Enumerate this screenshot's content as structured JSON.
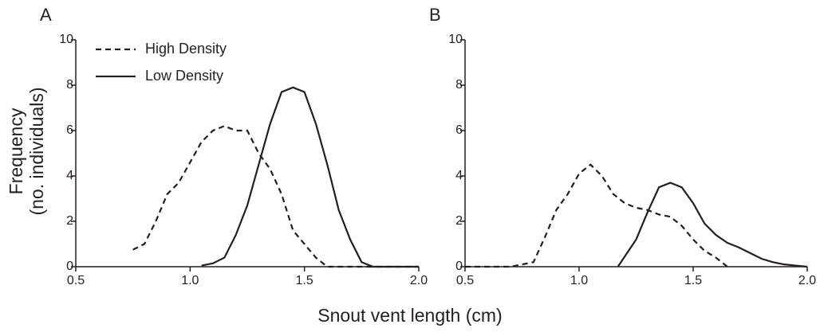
{
  "xlabel": "Snout vent length (cm)",
  "chart_data": [
    {
      "type": "line",
      "title": "A",
      "ylabel": [
        "Frequency",
        "(no. individuals)"
      ],
      "xlim": [
        0.5,
        2.0
      ],
      "xticks": [
        0.5,
        {
          "value": 1,
          "label": "1.0"
        },
        1.5,
        {
          "value": 2,
          "label": "2.0"
        }
      ],
      "ylim": [
        0,
        10
      ],
      "yticks": [
        0,
        2,
        4,
        6,
        8,
        10
      ],
      "legend": "upper left",
      "series": [
        {
          "name": "High Density",
          "color": "#231f20",
          "dash": "dashed",
          "x": [
            0.75,
            0.8,
            0.85,
            0.9,
            0.95,
            1.0,
            1.05,
            1.1,
            1.15,
            1.2,
            1.25,
            1.3,
            1.35,
            1.4,
            1.45,
            1.5,
            1.55,
            1.6,
            1.7,
            1.8,
            1.9,
            2.0
          ],
          "values": [
            0.75,
            1.0,
            2.0,
            3.2,
            3.7,
            4.6,
            5.5,
            6.0,
            6.2,
            6.0,
            6.0,
            5.0,
            4.3,
            3.2,
            1.6,
            1.0,
            0.4,
            0,
            0,
            0,
            0,
            0
          ]
        },
        {
          "name": "Low Density",
          "color": "#231f20",
          "dash": "solid",
          "x": [
            1.05,
            1.1,
            1.15,
            1.2,
            1.25,
            1.3,
            1.35,
            1.4,
            1.45,
            1.5,
            1.55,
            1.6,
            1.65,
            1.7,
            1.75,
            1.8,
            1.9,
            2.0
          ],
          "values": [
            0.05,
            0.15,
            0.4,
            1.4,
            2.7,
            4.5,
            6.3,
            7.7,
            7.9,
            7.7,
            6.3,
            4.5,
            2.5,
            1.2,
            0.2,
            0,
            0,
            0
          ]
        }
      ]
    },
    {
      "type": "line",
      "title": "B",
      "xlim": [
        0.5,
        2.0
      ],
      "xticks": [
        0.5,
        {
          "value": 1,
          "label": "1.0"
        },
        1.5,
        {
          "value": 2,
          "label": "2.0"
        }
      ],
      "ylim": [
        0,
        10
      ],
      "yticks": [
        0,
        2,
        4,
        6,
        8,
        10
      ],
      "series": [
        {
          "color": "#231f20",
          "dash": "dashed",
          "x": [
            0.5,
            0.6,
            0.7,
            0.8,
            0.85,
            0.9,
            0.95,
            1.0,
            1.05,
            1.1,
            1.15,
            1.2,
            1.25,
            1.3,
            1.35,
            1.4,
            1.45,
            1.5,
            1.55,
            1.6,
            1.65
          ],
          "values": [
            0,
            0,
            0,
            0.2,
            1.3,
            2.5,
            3.2,
            4.1,
            4.5,
            4.0,
            3.2,
            2.8,
            2.6,
            2.5,
            2.3,
            2.2,
            1.8,
            1.2,
            0.7,
            0.4,
            0
          ]
        },
        {
          "color": "#231f20",
          "dash": "solid",
          "x": [
            1.17,
            1.25,
            1.3,
            1.35,
            1.4,
            1.45,
            1.5,
            1.55,
            1.6,
            1.65,
            1.7,
            1.75,
            1.8,
            1.85,
            1.9,
            1.95,
            2.0
          ],
          "values": [
            0,
            1.2,
            2.4,
            3.5,
            3.7,
            3.5,
            2.8,
            1.9,
            1.4,
            1.05,
            0.85,
            0.6,
            0.35,
            0.2,
            0.1,
            0.05,
            0
          ]
        }
      ]
    }
  ]
}
